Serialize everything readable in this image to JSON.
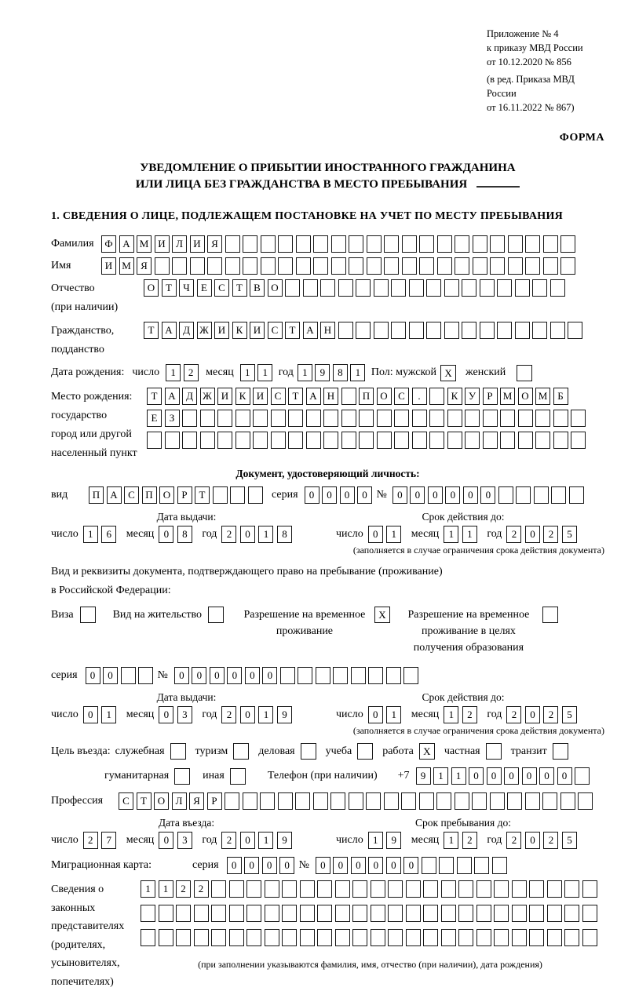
{
  "meta": {
    "appendix": [
      "Приложение № 4",
      "к приказу МВД России",
      "от 10.12.2020 № 856"
    ],
    "amendment": [
      "(в ред. Приказа МВД России",
      "от 16.11.2022 № 867)"
    ],
    "form_label": "ФОРМА"
  },
  "title": {
    "line1": "УВЕДОМЛЕНИЕ О ПРИБЫТИИ ИНОСТРАННОГО ГРАЖДАНИНА",
    "line2": "ИЛИ ЛИЦА БЕЗ ГРАЖДАНСТВА В МЕСТО ПРЕБЫВАНИЯ"
  },
  "section1_title": "1. СВЕДЕНИЯ О ЛИЦЕ, ПОДЛЕЖАЩЕМ ПОСТАНОВКЕ НА УЧЕТ ПО МЕСТУ ПРЕБЫВАНИЯ",
  "labels": {
    "surname": "Фамилия",
    "given_name": "Имя",
    "patronymic": "Отчество",
    "if_any": "(при наличии)",
    "citizenship_1": "Гражданство,",
    "citizenship_2": "подданство",
    "birth_date": "Дата рождения:",
    "day": "число",
    "month": "месяц",
    "year": "год",
    "sex_male": "Пол: мужской",
    "sex_female": "женский",
    "birthplace_1": "Место рождения:",
    "birthplace_2": "государство",
    "birthplace_3": "город или другой",
    "birthplace_4": "населенный пункт",
    "doc_header": "Документ, удостоверяющий личность:",
    "doc_type": "вид",
    "series": "серия",
    "number_sign": "№",
    "issue_date": "Дата выдачи:",
    "valid_until": "Срок действия до:",
    "limit_note": "(заполняется в случае ограничения срока действия документа)",
    "permit_line1": "Вид и реквизиты документа, подтверждающего право на пребывание (проживание)",
    "permit_line2": "в Российской Федерации:",
    "purpose_label": "Цель въезда:",
    "phone_label": "Телефон (при наличии)",
    "phone_prefix": "+7",
    "profession": "Профессия",
    "entry_date": "Дата въезда:",
    "stay_until": "Срок пребывания до:",
    "migration_card": "Миграционная карта:",
    "rep_1": "Сведения о",
    "rep_2": "законных",
    "rep_3": "представителях",
    "rep_4": "(родителях,",
    "rep_5": "усыновителях,",
    "rep_6": "попечителях)",
    "rep_note": "(при заполнении указываются фамилия, имя, отчество (при наличии), дата рождения)"
  },
  "person": {
    "surname": {
      "len": 27,
      "value": "ФАМИЛИЯ"
    },
    "given_name": {
      "len": 27,
      "value": "ИМЯ"
    },
    "patronymic": {
      "len": 24,
      "value": "ОТЧЕСТВО"
    },
    "citizenship": {
      "len": 25,
      "value": "ТАДЖИКИСТАН"
    },
    "birth_day": {
      "len": 2,
      "value": "12"
    },
    "birth_month": {
      "len": 2,
      "value": "11"
    },
    "birth_year": {
      "len": 4,
      "value": "1981"
    },
    "sex_male_box": "X",
    "sex_female_box": "",
    "birthplace_row1": {
      "len": 24,
      "value": "ТАДЖИКИСТАН ПОС. КУРМОМБ"
    },
    "birthplace_row2": {
      "len": 25,
      "value": "ЕЗ"
    },
    "birthplace_row3": {
      "len": 25,
      "value": ""
    }
  },
  "passport": {
    "type": {
      "len": 10,
      "value": "ПАСПОРТ"
    },
    "series": {
      "len": 4,
      "value": "0000"
    },
    "number": {
      "len": 11,
      "value": "000000"
    },
    "issue_day": {
      "len": 2,
      "value": "16"
    },
    "issue_month": {
      "len": 2,
      "value": "08"
    },
    "issue_year": {
      "len": 4,
      "value": "2018"
    },
    "until_day": {
      "len": 2,
      "value": "01"
    },
    "until_month": {
      "len": 2,
      "value": "11"
    },
    "until_year": {
      "len": 4,
      "value": "2025"
    }
  },
  "permit_options": [
    {
      "label": "Виза",
      "checked": ""
    },
    {
      "label": "Вид на жительство",
      "checked": ""
    },
    {
      "label": "Разрешение на временное проживание",
      "checked": "X"
    },
    {
      "label": "Разрешение на временное проживание в целях получения образования",
      "checked": ""
    }
  ],
  "permit_doc": {
    "series": {
      "len": 4,
      "value": "00"
    },
    "number": {
      "len": 14,
      "value": "000000"
    },
    "issue_day": {
      "len": 2,
      "value": "01"
    },
    "issue_month": {
      "len": 2,
      "value": "03"
    },
    "issue_year": {
      "len": 4,
      "value": "2019"
    },
    "until_day": {
      "len": 2,
      "value": "01"
    },
    "until_month": {
      "len": 2,
      "value": "12"
    },
    "until_year": {
      "len": 4,
      "value": "2025"
    }
  },
  "purpose_options": [
    {
      "label": "служебная",
      "checked": ""
    },
    {
      "label": "туризм",
      "checked": ""
    },
    {
      "label": "деловая",
      "checked": ""
    },
    {
      "label": "учеба",
      "checked": ""
    },
    {
      "label": "работа",
      "checked": "X"
    },
    {
      "label": "частная",
      "checked": ""
    },
    {
      "label": "транзит",
      "checked": ""
    },
    {
      "label": "гуманитарная",
      "checked": ""
    },
    {
      "label": "иная",
      "checked": ""
    }
  ],
  "entry": {
    "phone": {
      "len": 10,
      "value": "911000000"
    },
    "profession": {
      "len": 27,
      "value": "СТОЛЯР"
    },
    "entry_day": {
      "len": 2,
      "value": "27"
    },
    "entry_month": {
      "len": 2,
      "value": "03"
    },
    "entry_year": {
      "len": 4,
      "value": "2019"
    },
    "stay_day": {
      "len": 2,
      "value": "19"
    },
    "stay_month": {
      "len": 2,
      "value": "12"
    },
    "stay_year": {
      "len": 4,
      "value": "2025"
    }
  },
  "migration_card": {
    "series": {
      "len": 4,
      "value": "0000"
    },
    "number": {
      "len": 11,
      "value": "000000"
    }
  },
  "representatives": {
    "row1": {
      "len": 26,
      "value": "1122"
    },
    "row2": {
      "len": 26,
      "value": ""
    },
    "row3": {
      "len": 26,
      "value": ""
    }
  }
}
